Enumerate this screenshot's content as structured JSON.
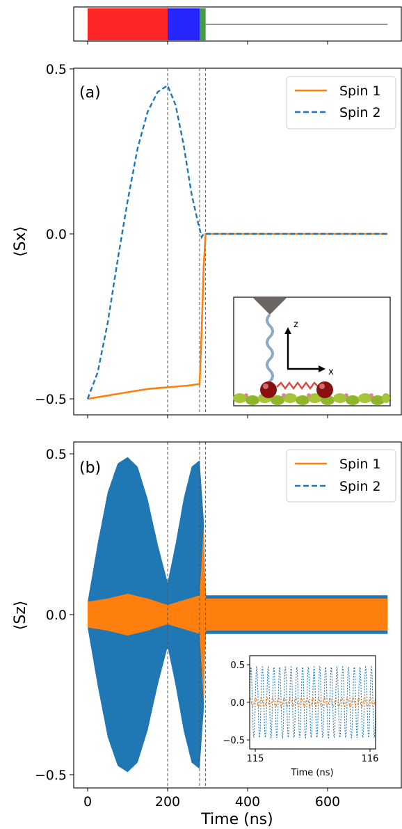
{
  "chart_data": [
    {
      "type": "bar",
      "role": "pulse-sequence",
      "segments": [
        {
          "x_start": 0,
          "x_end": 200,
          "color": "#ff0000"
        },
        {
          "x_start": 200,
          "x_end": 280,
          "color": "#0000ff"
        },
        {
          "x_start": 280,
          "x_end": 295,
          "color": "#228b22"
        }
      ],
      "baseline": {
        "x_start": 295,
        "x_end": 750,
        "color": "#555555"
      },
      "xlim": [
        -35,
        785
      ]
    },
    {
      "type": "line",
      "panel_label": "(a)",
      "ylabel": "⟨Sx⟩",
      "xlim": [
        -35,
        785
      ],
      "ylim": [
        -0.55,
        0.5
      ],
      "yticks": [
        -0.5,
        0.0,
        0.5
      ],
      "ytick_labels": [
        "−0.5",
        "0.0",
        "0.5"
      ],
      "vlines": [
        200,
        280,
        295
      ],
      "legend": {
        "loc": "upper right",
        "entries": [
          {
            "label": "Spin 1",
            "color": "#ff7f0e",
            "style": "solid"
          },
          {
            "label": "Spin 2",
            "color": "#1f77b4",
            "style": "dashed"
          }
        ]
      },
      "series": [
        {
          "name": "Spin 1",
          "color": "#ff7f0e",
          "style": "solid",
          "x": [
            0,
            50,
            100,
            150,
            200,
            250,
            280,
            285,
            290,
            295,
            400,
            500,
            600,
            750
          ],
          "y": [
            -0.5,
            -0.49,
            -0.48,
            -0.47,
            -0.465,
            -0.46,
            -0.455,
            -0.3,
            -0.1,
            0.0,
            0.0,
            0.0,
            0.0,
            0.0
          ]
        },
        {
          "name": "Spin 2",
          "color": "#1f77b4",
          "style": "dashed",
          "x": [
            0,
            25,
            50,
            75,
            100,
            125,
            150,
            175,
            200,
            220,
            240,
            260,
            275,
            285,
            290,
            295,
            400,
            500,
            600,
            750
          ],
          "y": [
            -0.5,
            -0.42,
            -0.27,
            -0.08,
            0.1,
            0.26,
            0.37,
            0.43,
            0.45,
            0.39,
            0.27,
            0.12,
            0.04,
            -0.01,
            0.0,
            0.0,
            0.0,
            0.0,
            0.0,
            0.0
          ]
        }
      ],
      "inset": {
        "type": "diagram",
        "axis_labels": [
          "z",
          "x"
        ]
      }
    },
    {
      "type": "line",
      "panel_label": "(b)",
      "xlabel": "Time (ns)",
      "ylabel": "⟨Sz⟩",
      "xlim": [
        -35,
        785
      ],
      "ylim": [
        -0.54,
        0.54
      ],
      "xticks": [
        0,
        200,
        400,
        600
      ],
      "xtick_labels": [
        "0",
        "200",
        "400",
        "600"
      ],
      "yticks": [
        -0.5,
        0.0,
        0.5
      ],
      "ytick_labels": [
        "−0.5",
        "0.0",
        "0.5"
      ],
      "vlines": [
        200,
        280,
        295
      ],
      "legend": {
        "loc": "upper right",
        "entries": [
          {
            "label": "Spin 1",
            "color": "#ff7f0e",
            "style": "solid"
          },
          {
            "label": "Spin 2",
            "color": "#1f77b4",
            "style": "dashed"
          }
        ]
      },
      "series": [
        {
          "name": "Spin 2 envelope",
          "color": "#1f77b4",
          "x": [
            0,
            25,
            50,
            75,
            100,
            125,
            150,
            175,
            200,
            220,
            240,
            260,
            280,
            290,
            295,
            750
          ],
          "y": [
            0.04,
            0.22,
            0.38,
            0.47,
            0.49,
            0.46,
            0.36,
            0.22,
            0.1,
            0.22,
            0.36,
            0.46,
            0.48,
            0.3,
            0.06,
            0.06
          ]
        },
        {
          "name": "Spin 1 envelope",
          "color": "#ff7f0e",
          "x": [
            0,
            50,
            100,
            150,
            200,
            240,
            280,
            290,
            295,
            750
          ],
          "y": [
            0.04,
            0.05,
            0.065,
            0.05,
            0.03,
            0.045,
            0.06,
            0.27,
            0.05,
            0.05
          ]
        }
      ],
      "inset": {
        "type": "line",
        "xlabel": "Time (ns)",
        "xlim": [
          114.95,
          116.05
        ],
        "ylim": [
          -0.55,
          0.55
        ],
        "xticks": [
          115,
          116
        ],
        "xtick_labels": [
          "115",
          "116"
        ],
        "yticks": [
          -0.5,
          0.0,
          0.5
        ],
        "ytick_labels": [
          "−0.5",
          "0.0",
          "0.5"
        ],
        "series": [
          {
            "name": "Spin 2",
            "color": "#1f77b4",
            "style": "dotted",
            "amplitude": 0.47,
            "frequency_ghz": 20
          },
          {
            "name": "Spin 1",
            "color": "#ff7f0e",
            "style": "dashed",
            "amplitude": 0.06,
            "frequency_ghz": 20
          }
        ]
      }
    }
  ]
}
